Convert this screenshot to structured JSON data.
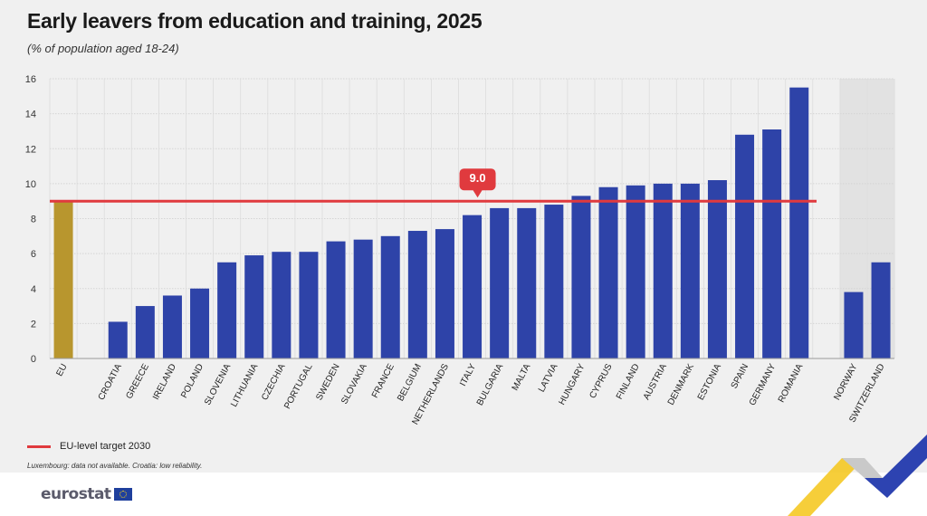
{
  "header": {
    "title": "Early leavers from education and training, 2025",
    "subtitle": "(% of population aged 18-24)"
  },
  "legend": {
    "target_label": "EU-level target 2030"
  },
  "footnote": "Luxembourg: data not available. Croatia: low reliability.",
  "logo": {
    "text": "eurostat"
  },
  "colors": {
    "eu": "#b8962e",
    "country": "#2e43a8",
    "target": "#e03a3e",
    "background": "#f0f0f0",
    "nonmember_band": "#e2e2e2"
  },
  "chart_data": {
    "type": "bar",
    "title": "Early leavers from education and training, 2025",
    "subtitle": "(% of population aged 18-24)",
    "categories": [
      "EU",
      "CROATIA",
      "GREECE",
      "IRELAND",
      "POLAND",
      "SLOVENIA",
      "LITHUANIA",
      "CZECHIA",
      "PORTUGAL",
      "SWEDEN",
      "SLOVAKIA",
      "FRANCE",
      "BELGIUM",
      "NETHERLANDS",
      "ITALY",
      "BULGARIA",
      "MALTA",
      "LATVIA",
      "HUNGARY",
      "CYPRUS",
      "FINLAND",
      "AUSTRIA",
      "DENMARK",
      "ESTONIA",
      "SPAIN",
      "GERMANY",
      "ROMANIA",
      "NORWAY",
      "SWITZERLAND"
    ],
    "values": [
      9.0,
      2.1,
      3.0,
      3.6,
      4.0,
      5.5,
      5.9,
      6.1,
      6.1,
      6.7,
      6.8,
      7.0,
      7.3,
      7.4,
      8.2,
      8.6,
      8.6,
      8.8,
      9.3,
      9.8,
      9.9,
      10.0,
      10.0,
      10.2,
      12.8,
      13.1,
      15.5,
      3.8,
      5.5
    ],
    "groups": {
      "eu": [
        "EU"
      ],
      "nonmember": [
        "NORWAY",
        "SWITZERLAND"
      ]
    },
    "target": {
      "value": 9.0,
      "label": "9.0",
      "name": "EU-level target 2030"
    },
    "ylim": [
      0,
      16
    ],
    "yticks": [
      0,
      2,
      4,
      6,
      8,
      10,
      12,
      14,
      16
    ],
    "grid": true,
    "legend_position": "bottom-left"
  }
}
